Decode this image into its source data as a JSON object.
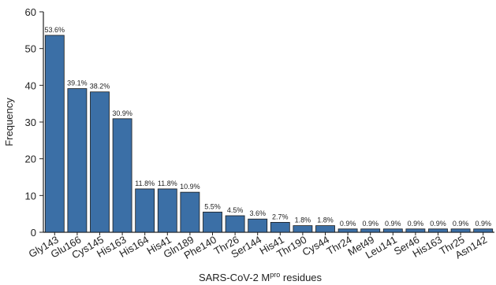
{
  "chart_data": {
    "type": "bar",
    "ylabel": "Frequency",
    "xlabel": [
      "SARS-CoV-2 M",
      "pro",
      " residues"
    ],
    "categories": [
      "Gly143",
      "Glu166",
      "Cys145",
      "His163",
      "His164",
      "His41",
      "Gln189",
      "Phe140",
      "Thr26",
      "Ser144",
      "His41",
      "Thr190",
      "Cys44",
      "Thr24",
      "Met49",
      "Leu141",
      "Ser46",
      "His163",
      "Thr25",
      "Asn142"
    ],
    "values": [
      53.6,
      39.1,
      38.2,
      30.9,
      11.8,
      11.8,
      10.9,
      5.5,
      4.5,
      3.6,
      2.7,
      1.8,
      1.8,
      0.9,
      0.9,
      0.9,
      0.9,
      0.9,
      0.9,
      0.9
    ],
    "value_labels": [
      "53.6%",
      "39.1%",
      "38.2%",
      "30.9%",
      "11.8%",
      "11.8%",
      "10.9%",
      "5.5%",
      "4.5%",
      "3.6%",
      "2.7%",
      "1.8%",
      "1.8%",
      "0.9%",
      "0.9%",
      "0.9%",
      "0.9%",
      "0.9%",
      "0.9%",
      "0.9%"
    ],
    "color": "#3b6fa6",
    "ylim": [
      0,
      60
    ],
    "yticks": [
      0,
      10,
      20,
      30,
      40,
      50,
      60
    ]
  }
}
